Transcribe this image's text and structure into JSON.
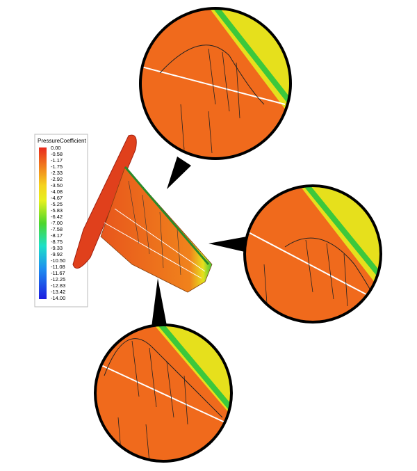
{
  "legend": {
    "title": "PressureCoefficient",
    "labels": [
      "0.00",
      "-0.58",
      "-1.17",
      "-1.75",
      "-2.33",
      "-2.92",
      "-3.50",
      "-4.08",
      "-4.67",
      "-5.25",
      "-5.83",
      "-6.42",
      "-7.00",
      "-7.58",
      "-8.17",
      "-8.75",
      "-9.33",
      "-9.92",
      "-10.50",
      "-11.08",
      "-11.67",
      "-12.25",
      "-12.83",
      "-13.42",
      "-14.00"
    ]
  }
}
